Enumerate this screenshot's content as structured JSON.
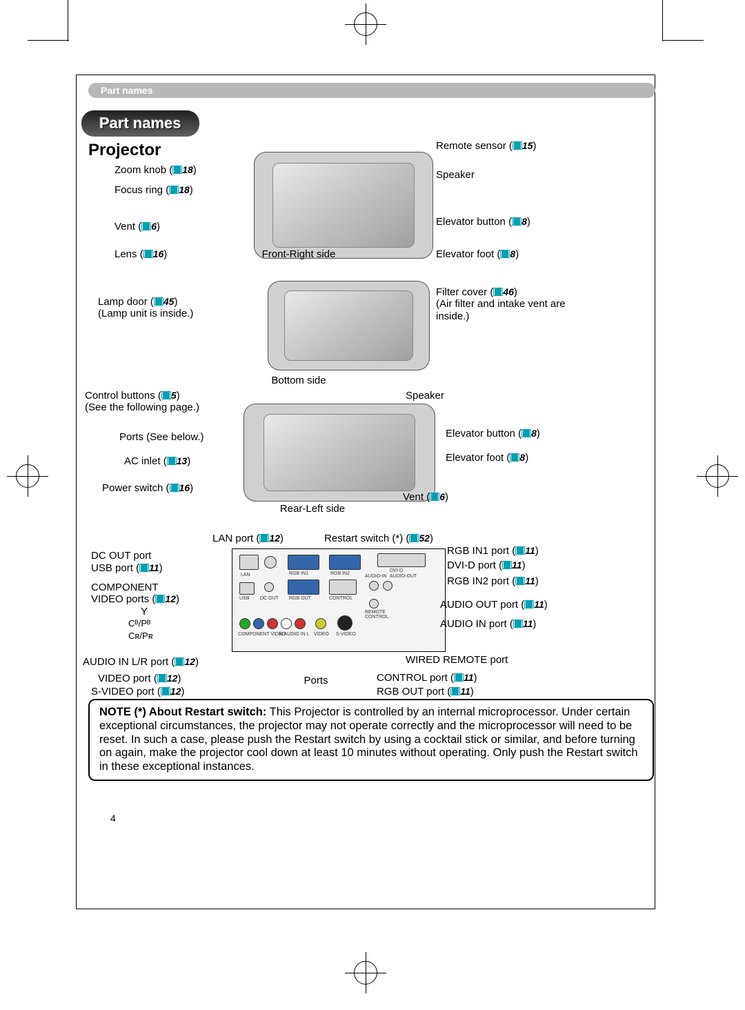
{
  "header": {
    "crumb": "Part names"
  },
  "title_pill": "Part names",
  "subtitle": "Projector",
  "page_number": "4",
  "views": {
    "front_right": "Front-Right side",
    "bottom": "Bottom side",
    "rear_left": "Rear-Left side",
    "ports": "Ports"
  },
  "callouts_left_top": [
    {
      "text": "Zoom knob",
      "ref": "18"
    },
    {
      "text": "Focus ring",
      "ref": "18"
    },
    {
      "text": "Vent",
      "ref": "6"
    },
    {
      "text": "Lens",
      "ref": "16"
    }
  ],
  "callouts_right_top": [
    {
      "text": "Remote sensor",
      "ref": "15"
    },
    {
      "text": "Speaker",
      "ref": null
    },
    {
      "text": "Elevator button",
      "ref": "8"
    },
    {
      "text": "Elevator foot",
      "ref": "8"
    }
  ],
  "callouts_left_mid": [
    {
      "text": "Lamp door",
      "ref": "45",
      "sub": "(Lamp unit is inside.)"
    }
  ],
  "callouts_right_mid": [
    {
      "text": "Filter cover",
      "ref": "46",
      "sub": "(Air filter and intake vent are inside.)"
    }
  ],
  "callouts_left_rear": [
    {
      "text": "Control buttons",
      "ref": "5",
      "sub": "(See the following page.)"
    },
    {
      "text": "Ports (See below.)",
      "ref": null
    },
    {
      "text": "AC inlet",
      "ref": "13"
    },
    {
      "text": "Power switch",
      "ref": "16"
    }
  ],
  "callouts_right_rear": [
    {
      "text": "Speaker",
      "ref": null
    },
    {
      "text": "Elevator button",
      "ref": "8"
    },
    {
      "text": "Elevator foot",
      "ref": "8"
    },
    {
      "text": "Vent",
      "ref": "6"
    }
  ],
  "ports_top": [
    {
      "text": "LAN port",
      "ref": "12"
    },
    {
      "text": "Restart switch (*)",
      "ref": "52"
    }
  ],
  "ports_left": [
    {
      "text": "DC OUT port",
      "ref": null
    },
    {
      "text": "USB port",
      "ref": "11"
    },
    {
      "text": "COMPONENT",
      "ref": null
    },
    {
      "text": "VIDEO ports",
      "ref": "12"
    },
    {
      "text": "Y",
      "ref": null,
      "indent": 1
    },
    {
      "text": "Cᴮ/Pᴮ",
      "ref": null,
      "indent": 1,
      "sc": true
    },
    {
      "text": "Cʀ/Pʀ",
      "ref": null,
      "indent": 1,
      "sc": true
    },
    {
      "text": "AUDIO IN L/R port",
      "ref": "12"
    },
    {
      "text": "VIDEO port",
      "ref": "12"
    },
    {
      "text": "S-VIDEO port",
      "ref": "12"
    }
  ],
  "ports_right": [
    {
      "text": "RGB IN1 port",
      "ref": "11"
    },
    {
      "text": "DVI-D port",
      "ref": "11"
    },
    {
      "text": "RGB IN2 port",
      "ref": "11"
    },
    {
      "text": "AUDIO OUT port",
      "ref": "11"
    },
    {
      "text": "AUDIO IN port",
      "ref": "11"
    },
    {
      "text": "WIRED REMOTE port",
      "ref": null
    },
    {
      "text": "CONTROL port",
      "ref": "11"
    },
    {
      "text": "RGB OUT port",
      "ref": "11"
    }
  ],
  "note": {
    "bold": "NOTE",
    "lead": " (*) About Restart switch:",
    "body": " This Projector is controlled by an internal microprocessor. Under certain exceptional circumstances, the projector may not operate correctly and the microprocessor will need to be reset. In such a case, please push the Restart switch by using a cocktail stick or similar, and before turning on again, make the projector cool down at least 10 minutes without operating. Only push the Restart switch in these exceptional instances."
  },
  "colors": {
    "ref_icon": "#00a0b0",
    "pill_bg": "#b8b8b8"
  }
}
